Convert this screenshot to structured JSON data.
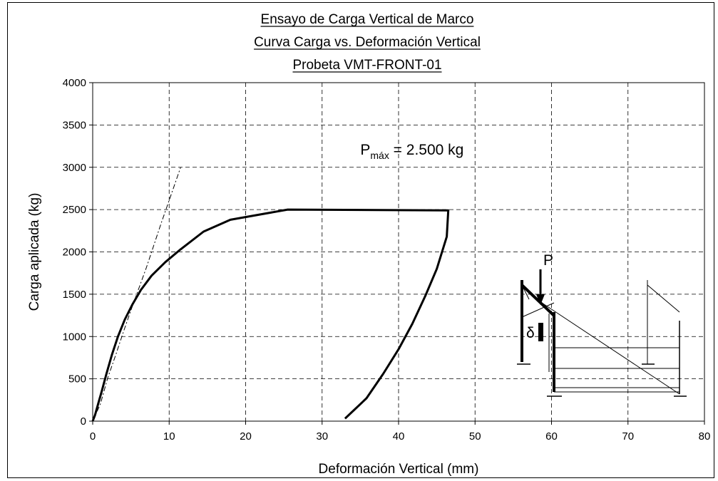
{
  "chart_data": {
    "type": "line",
    "title_lines": [
      "Ensayo de Carga Vertical de Marco",
      "Curva Carga vs. Deformación Vertical",
      "Probeta VMT-FRONT-01"
    ],
    "xlabel": "Deformación Vertical (mm)",
    "ylabel": "Carga aplicada (kg)",
    "xlim": [
      0,
      80
    ],
    "ylim": [
      0,
      4000
    ],
    "x_ticks": [
      0,
      10,
      20,
      30,
      40,
      50,
      60,
      70,
      80
    ],
    "y_ticks": [
      0,
      500,
      1000,
      1500,
      2000,
      2500,
      3000,
      3500,
      4000
    ],
    "grid": true,
    "annotation": {
      "prefix": "P",
      "subscript": "máx",
      "suffix": " = 2.500 kg",
      "x": 35,
      "y": 3150
    },
    "series": [
      {
        "style": "solid-thick",
        "x": [
          0,
          0.3,
          0.7,
          1.2,
          1.8,
          2.5,
          3.3,
          4.2,
          5.2,
          6.3,
          7.7,
          9.5,
          11.5,
          14.5,
          18,
          25.5,
          46.5,
          46.3,
          45,
          43.5,
          41.8,
          40,
          38,
          35.8,
          33
        ],
        "y": [
          0,
          70,
          200,
          360,
          560,
          780,
          1000,
          1200,
          1380,
          1550,
          1720,
          1880,
          2030,
          2240,
          2380,
          2500,
          2490,
          2180,
          1800,
          1480,
          1150,
          850,
          560,
          270,
          30
        ]
      },
      {
        "style": "dash-dot",
        "x": [
          0,
          1,
          2,
          3,
          4,
          5,
          6,
          7,
          8,
          9,
          10,
          11.5
        ],
        "y": [
          0,
          200,
          520,
          780,
          1050,
          1310,
          1560,
          1810,
          2080,
          2350,
          2610,
          3000
        ]
      }
    ],
    "inset_labels": {
      "load": "P",
      "displacement": "δ"
    }
  }
}
